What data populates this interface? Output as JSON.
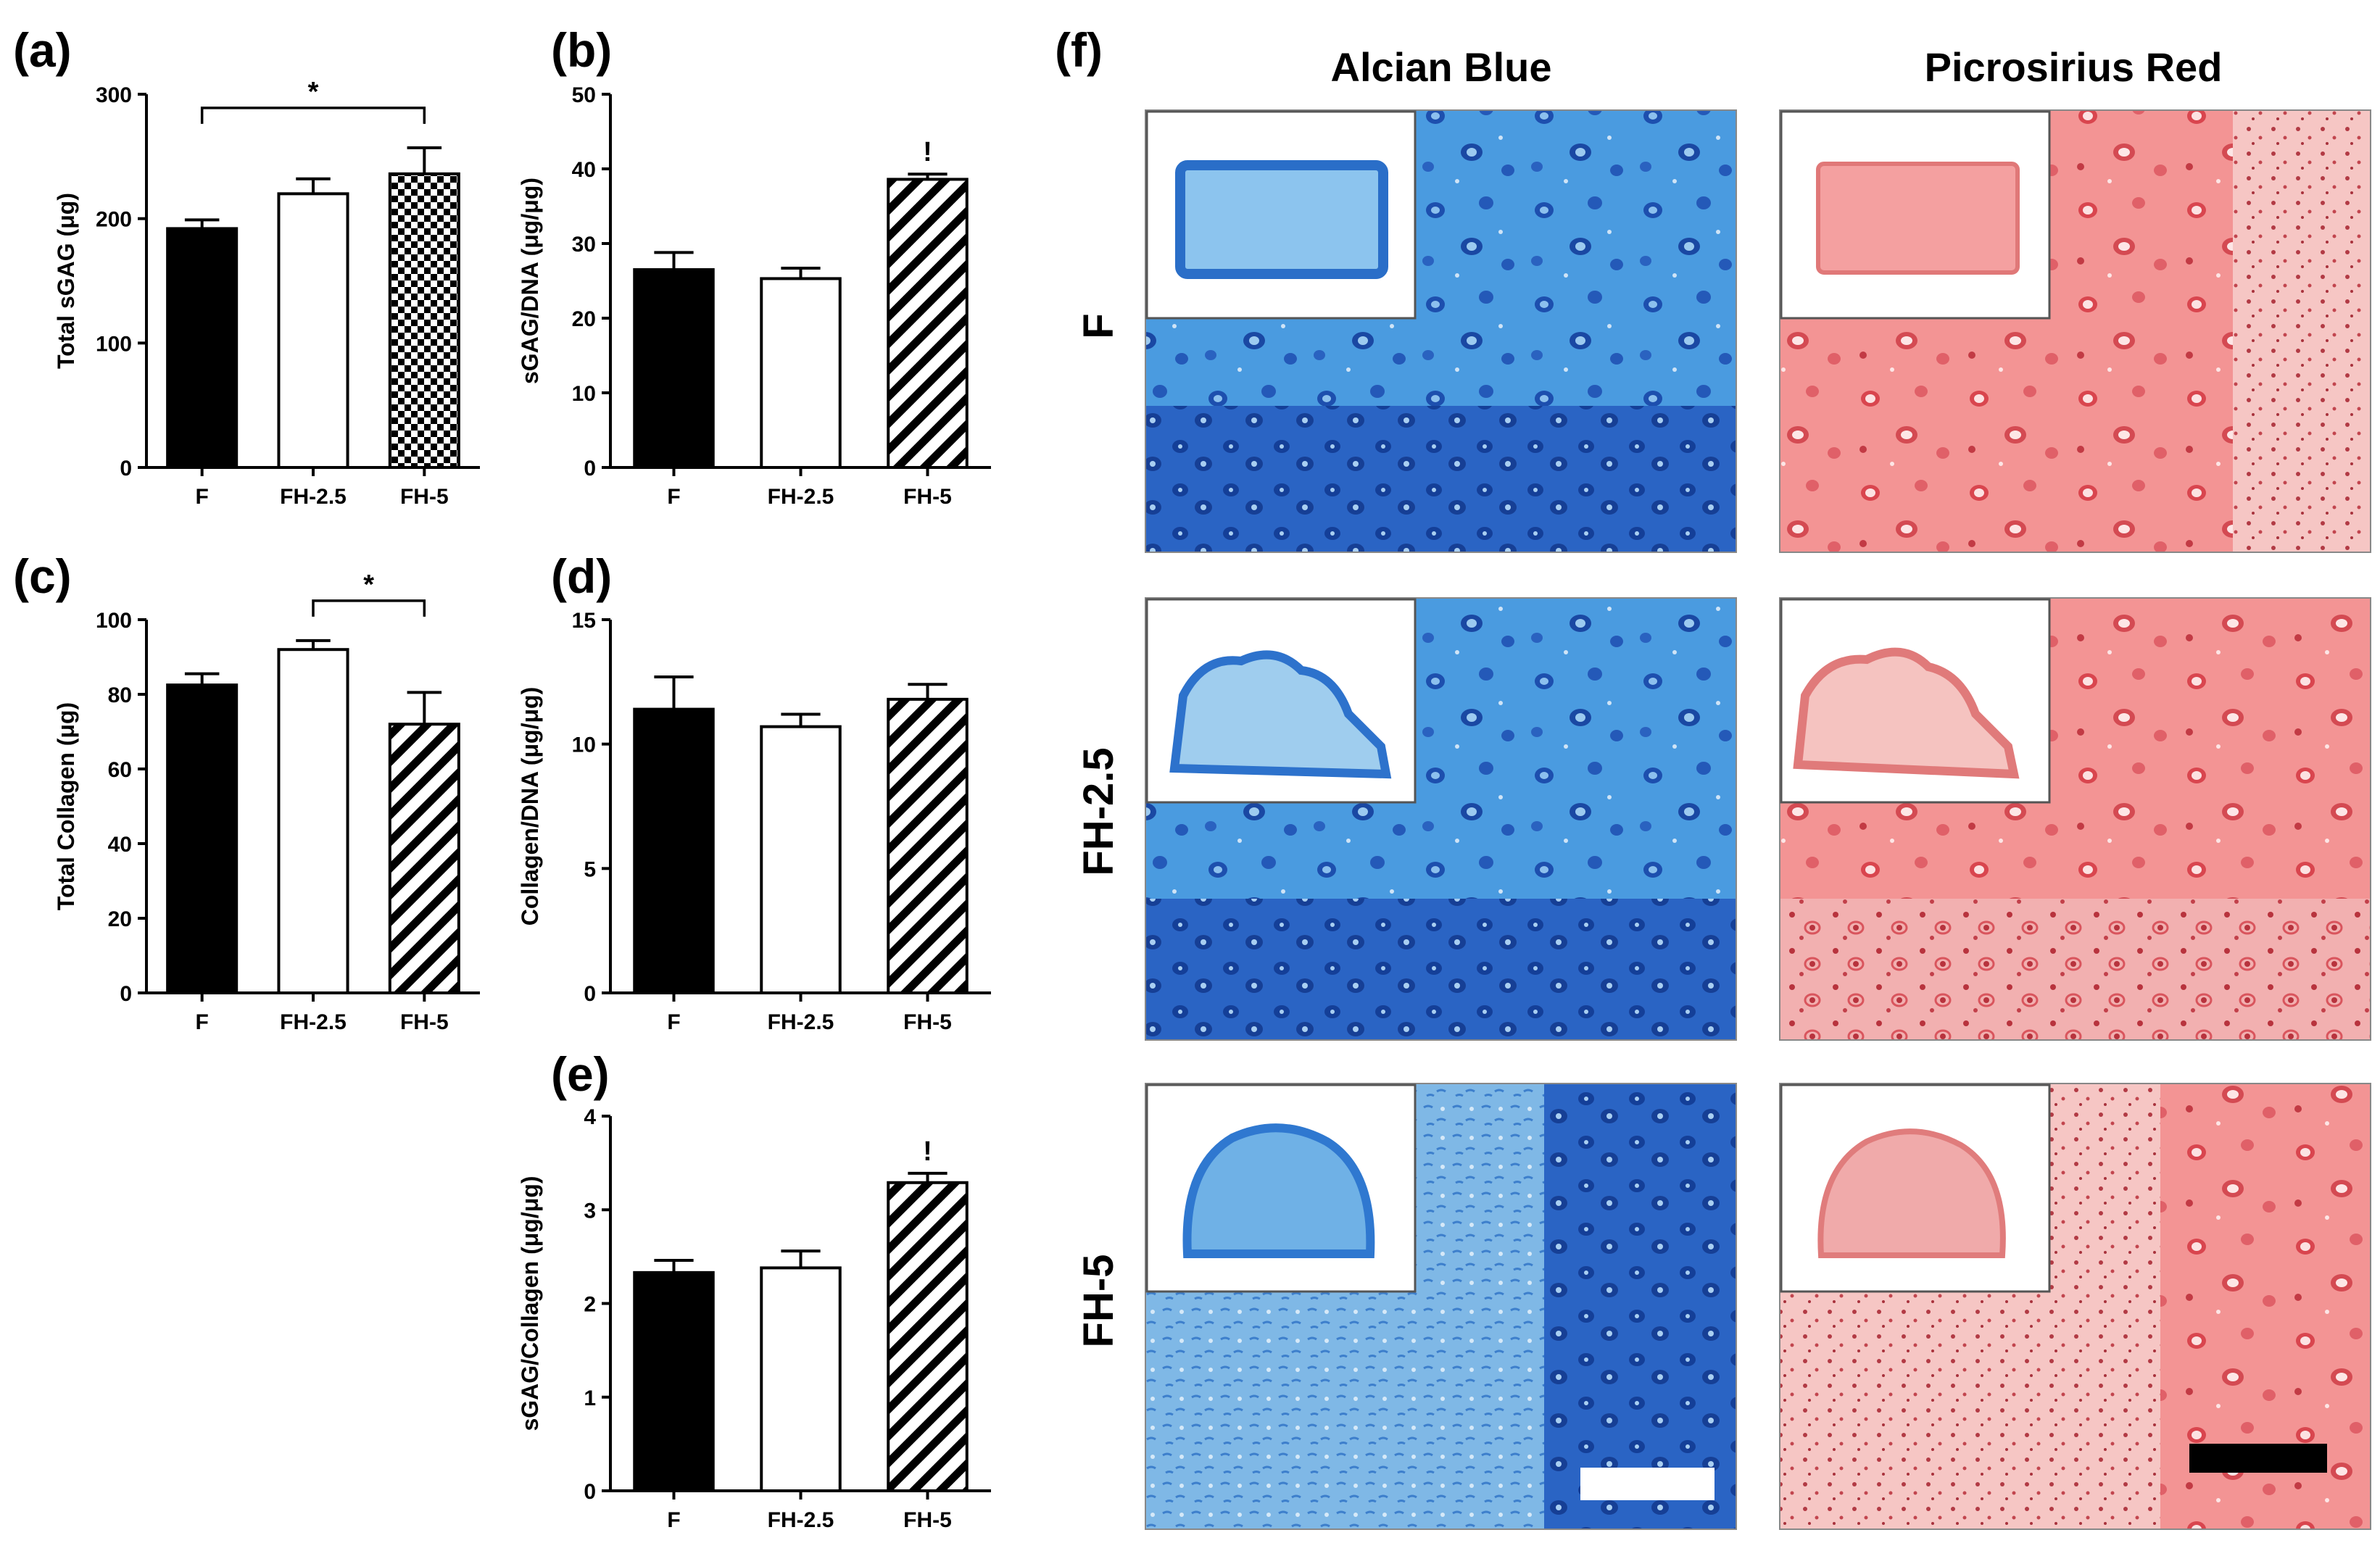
{
  "colors": {
    "bar_F": "#000000",
    "bar_FH25": "#ffffff",
    "bar_FH5": "pattern",
    "alcian_blue": "#3b8fd6",
    "alcian_dark": "#1f55b8",
    "picrosirius_red": "#f08a8a",
    "picrosirius_dark": "#d9474f"
  },
  "micrographs": {
    "panel_label": "(f)",
    "columns": [
      "Alcian Blue",
      "Picrosirius Red"
    ],
    "rows": [
      "F",
      "FH-2.5",
      "FH-5"
    ]
  },
  "chart_data": [
    {
      "panel": "(a)",
      "type": "bar",
      "categories": [
        "F",
        "FH-2.5",
        "FH-5"
      ],
      "values": [
        192,
        220,
        236
      ],
      "errors": [
        7,
        12,
        21
      ],
      "ylabel": "Total sGAG (μg)",
      "ylim": [
        0,
        300
      ],
      "yticks": [
        "0",
        "100",
        "200",
        "300"
      ],
      "fills": [
        "solid",
        "open",
        "checker"
      ],
      "significance": [
        {
          "from": 0,
          "to": 2,
          "label": "*"
        }
      ],
      "marks": []
    },
    {
      "panel": "(b)",
      "type": "bar",
      "categories": [
        "F",
        "FH-2.5",
        "FH-5"
      ],
      "values": [
        26.5,
        25.3,
        38.6
      ],
      "errors": [
        2.3,
        1.4,
        0.7
      ],
      "ylabel": "sGAG/DNA (μg/μg)",
      "ylim": [
        0,
        50
      ],
      "yticks": [
        "0",
        "10",
        "20",
        "30",
        "40",
        "50"
      ],
      "fills": [
        "solid",
        "open",
        "hatch"
      ],
      "significance": [],
      "marks": [
        {
          "index": 2,
          "label": "!"
        }
      ]
    },
    {
      "panel": "(c)",
      "type": "bar",
      "categories": [
        "F",
        "FH-2.5",
        "FH-5"
      ],
      "values": [
        82.5,
        92,
        72
      ],
      "errors": [
        3,
        2.4,
        8.5
      ],
      "ylabel": "Total Collagen (μg)",
      "ylim": [
        0,
        100
      ],
      "yticks": [
        "0",
        "20",
        "40",
        "60",
        "80",
        "100"
      ],
      "fills": [
        "solid",
        "open",
        "hatch"
      ],
      "significance": [
        {
          "from": 1,
          "to": 2,
          "label": "*"
        }
      ],
      "marks": []
    },
    {
      "panel": "(d)",
      "type": "bar",
      "categories": [
        "F",
        "FH-2.5",
        "FH-5"
      ],
      "values": [
        11.4,
        10.7,
        11.8
      ],
      "errors": [
        1.3,
        0.5,
        0.6
      ],
      "ylabel": "Collagen/DNA (μg/μg)",
      "ylim": [
        0,
        15
      ],
      "yticks": [
        "0",
        "5",
        "10",
        "15"
      ],
      "fills": [
        "solid",
        "open",
        "hatch"
      ],
      "significance": [],
      "marks": []
    },
    {
      "panel": "(e)",
      "type": "bar",
      "categories": [
        "F",
        "FH-2.5",
        "FH-5"
      ],
      "values": [
        2.33,
        2.38,
        3.29
      ],
      "errors": [
        0.13,
        0.18,
        0.1
      ],
      "ylabel": "sGAG/Collagen (μg/μg)",
      "ylim": [
        0,
        4
      ],
      "yticks": [
        "0",
        "1",
        "2",
        "3",
        "4"
      ],
      "fills": [
        "solid",
        "open",
        "hatch"
      ],
      "significance": [],
      "marks": [
        {
          "index": 2,
          "label": "!"
        }
      ]
    }
  ]
}
